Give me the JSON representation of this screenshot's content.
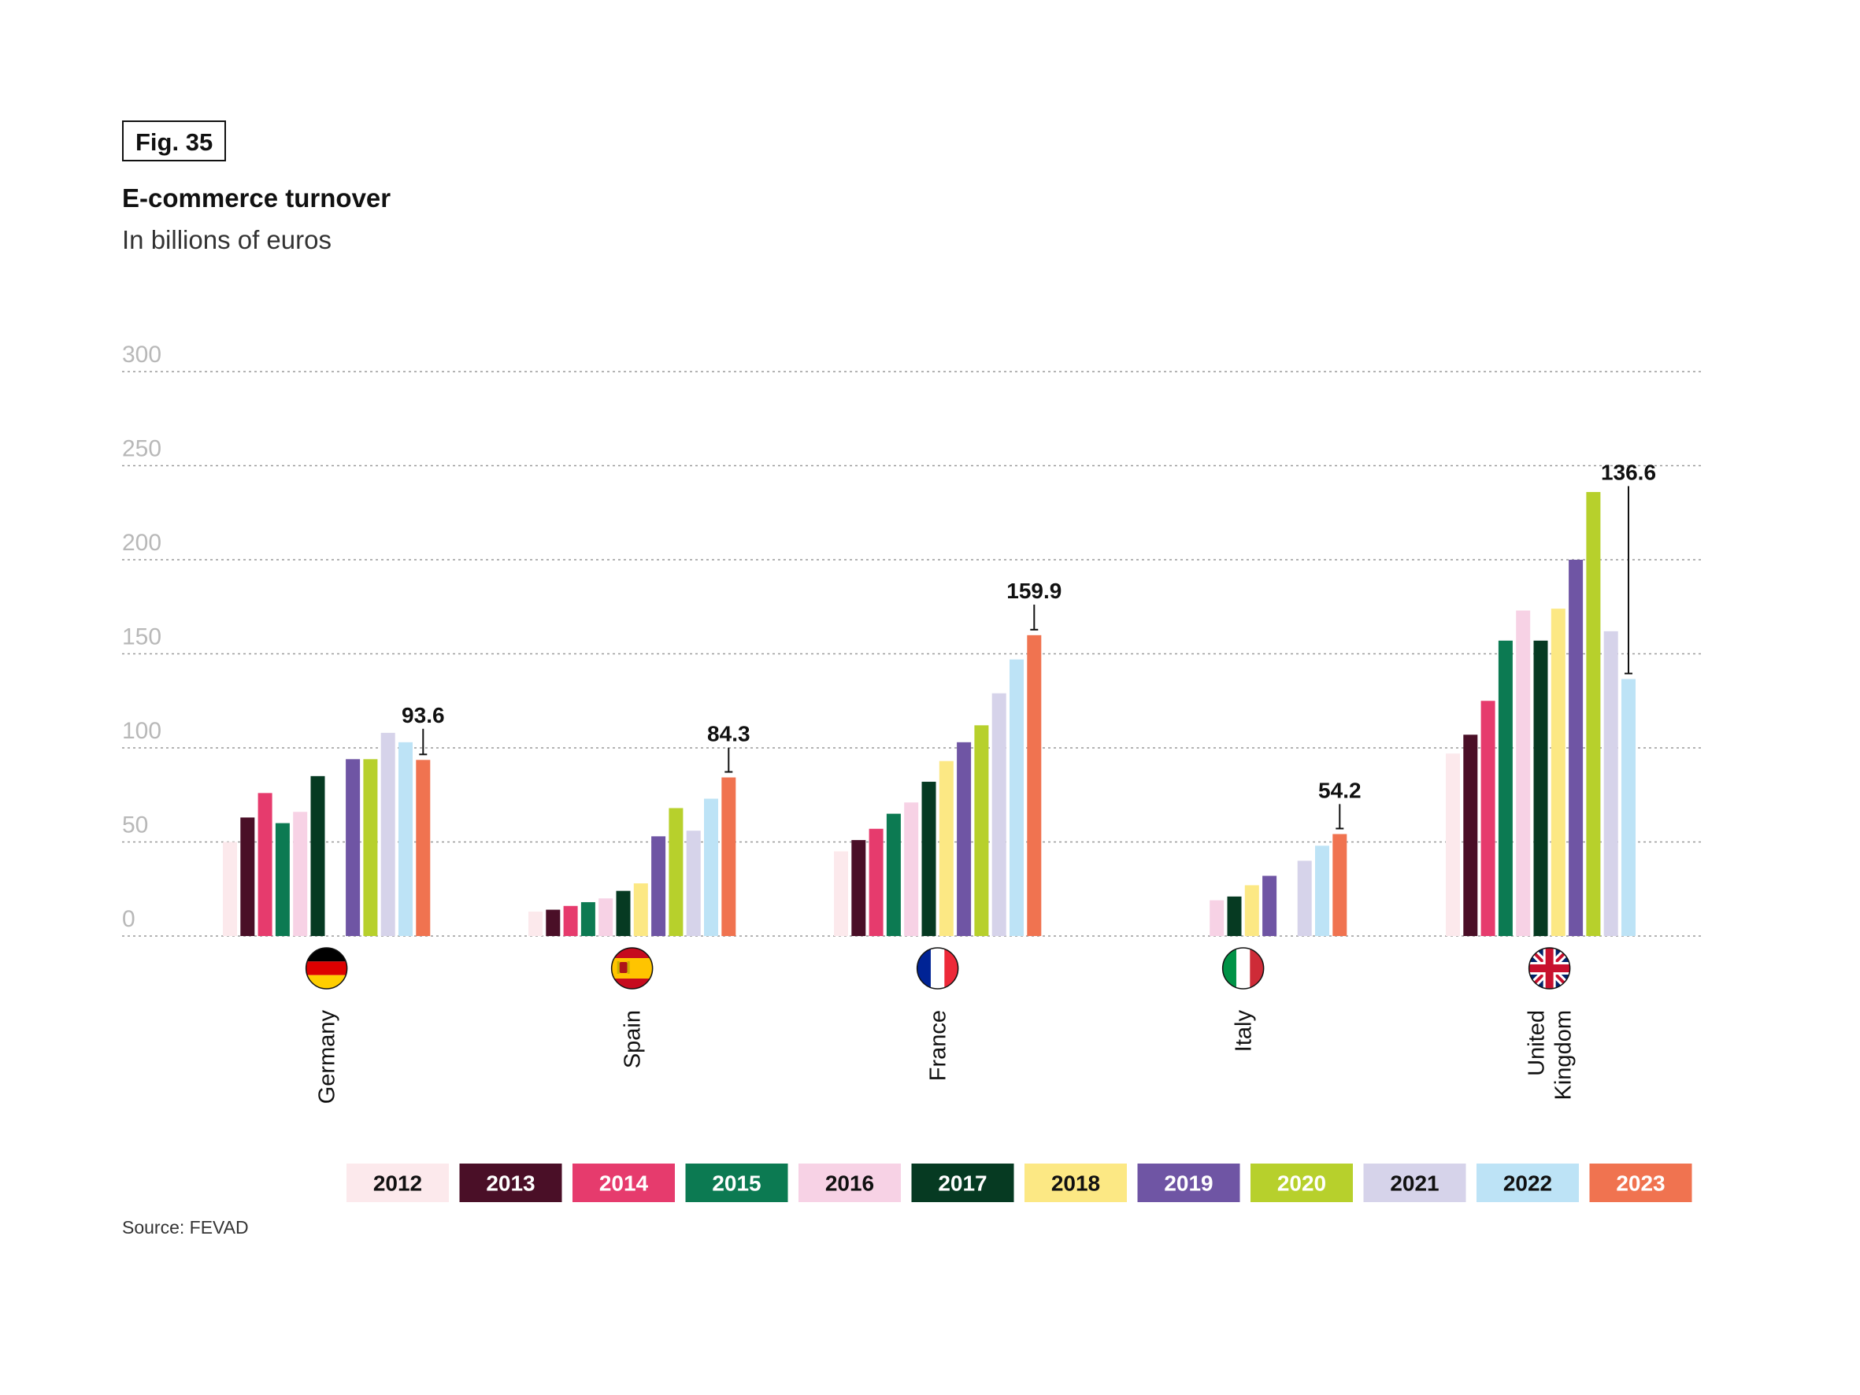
{
  "figure": {
    "tag": "Fig. 35",
    "source": "Source: FEVAD"
  },
  "chart_data": {
    "type": "bar",
    "title": "E-commerce turnover",
    "subtitle": "In billions of euros",
    "ylim": [
      0,
      300
    ],
    "yticks": [
      0,
      50,
      100,
      150,
      200,
      250,
      300
    ],
    "grid": true,
    "legend_position": "bottom",
    "categories": [
      {
        "label": "Germany",
        "flag": "germany-flag-icon"
      },
      {
        "label": "Spain",
        "flag": "spain-flag-icon"
      },
      {
        "label": "France",
        "flag": "france-flag-icon"
      },
      {
        "label": "Italy",
        "flag": "italy-flag-icon"
      },
      {
        "label": "United Kingdom",
        "label_lines": [
          "United",
          "Kingdom"
        ],
        "flag": "uk-flag-icon"
      }
    ],
    "series": [
      {
        "name": "2012",
        "color": "#fce9ec",
        "text_color": "#111111",
        "values": [
          50,
          13,
          45,
          null,
          97
        ]
      },
      {
        "name": "2013",
        "color": "#4a0f27",
        "text_color": "#ffffff",
        "values": [
          63,
          14,
          51,
          null,
          107
        ]
      },
      {
        "name": "2014",
        "color": "#e63b6d",
        "text_color": "#ffffff",
        "values": [
          76,
          16,
          57,
          null,
          125
        ]
      },
      {
        "name": "2015",
        "color": "#0c7a52",
        "text_color": "#ffffff",
        "values": [
          60,
          18,
          65,
          null,
          157
        ]
      },
      {
        "name": "2016",
        "color": "#f7d2e5",
        "text_color": "#111111",
        "values": [
          66,
          20,
          71,
          19,
          173
        ]
      },
      {
        "name": "2017",
        "color": "#063a22",
        "text_color": "#ffffff",
        "values": [
          85,
          24,
          82,
          21,
          157
        ]
      },
      {
        "name": "2018",
        "color": "#fce884",
        "text_color": "#111111",
        "values": [
          null,
          28,
          93,
          27,
          174
        ]
      },
      {
        "name": "2019",
        "color": "#6f55a4",
        "text_color": "#ffffff",
        "values": [
          94,
          53,
          103,
          32,
          200
        ]
      },
      {
        "name": "2020",
        "color": "#b7d02c",
        "text_color": "#ffffff",
        "values": [
          94,
          68,
          112,
          null,
          236
        ]
      },
      {
        "name": "2021",
        "color": "#d6d3ea",
        "text_color": "#111111",
        "values": [
          108,
          56,
          129,
          40,
          162
        ]
      },
      {
        "name": "2022",
        "color": "#bde3f6",
        "text_color": "#111111",
        "values": [
          103,
          73,
          147,
          48,
          136.6
        ]
      },
      {
        "name": "2023",
        "color": "#f07350",
        "text_color": "#ffffff",
        "values": [
          93.6,
          84.3,
          159.9,
          54.2,
          null
        ]
      }
    ],
    "annotations": [
      {
        "category": 0,
        "series": 11,
        "text": "93.6",
        "value": 93.6,
        "label_at": 116
      },
      {
        "category": 1,
        "series": 11,
        "text": "84.3",
        "value": 84.3,
        "label_at": 106
      },
      {
        "category": 2,
        "series": 11,
        "text": "159.9",
        "value": 159.9,
        "label_at": 182
      },
      {
        "category": 3,
        "series": 11,
        "text": "54.2",
        "value": 54.2,
        "label_at": 76
      },
      {
        "category": 4,
        "series": 10,
        "text": "136.6",
        "value": 136.6,
        "label_at": 245
      }
    ]
  }
}
